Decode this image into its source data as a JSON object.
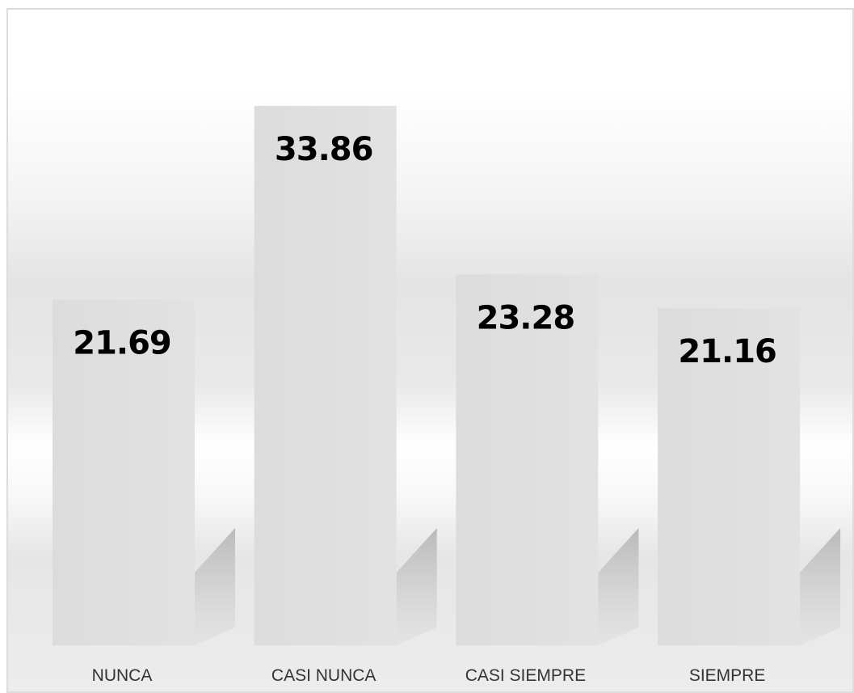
{
  "chart_data": {
    "type": "bar",
    "categories": [
      "NUNCA",
      "CASI NUNCA",
      "CASI SIEMPRE",
      "SIEMPRE"
    ],
    "values": [
      21.69,
      33.86,
      23.28,
      21.16
    ],
    "value_labels": [
      "21.69",
      "33.86",
      "23.28",
      "21.16"
    ],
    "title": "",
    "xlabel": "",
    "ylabel": "",
    "ylim": [
      0,
      40
    ],
    "grid": false,
    "legend": "none",
    "bar_color": "#dedede",
    "shadow_color": "#a8a8a8"
  }
}
